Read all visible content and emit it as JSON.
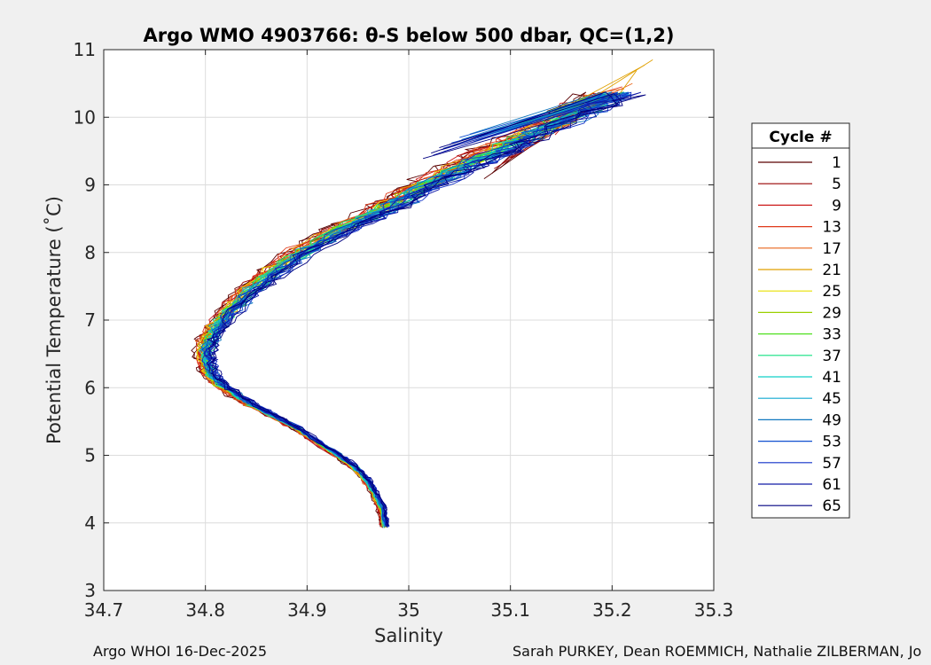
{
  "chart_data": {
    "type": "line",
    "title": "Argo WMO 4903766: θ-S below 500 dbar,  QC=(1,2)",
    "xlabel": "Salinity",
    "ylabel": "Potential Temperature (˚C)",
    "xlim": [
      34.7,
      35.3
    ],
    "ylim": [
      3,
      11
    ],
    "x_ticks": [
      34.7,
      34.8,
      34.9,
      35.0,
      35.1,
      35.2,
      35.3
    ],
    "x_tick_labels": [
      "34.7",
      "34.8",
      "34.9",
      "35",
      "35.1",
      "35.2",
      "35.3"
    ],
    "y_ticks": [
      3,
      4,
      5,
      6,
      7,
      8,
      9,
      10,
      11
    ],
    "y_tick_labels": [
      "3",
      "4",
      "5",
      "6",
      "7",
      "8",
      "9",
      "10",
      "11"
    ],
    "grid": true,
    "legend": {
      "title": "Cycle #",
      "placement": "outside-right",
      "entries": [
        "1",
        "5",
        "9",
        "13",
        "17",
        "21",
        "25",
        "29",
        "33",
        "37",
        "41",
        "45",
        "49",
        "53",
        "57",
        "61",
        "65"
      ],
      "colors": [
        "#5a0000",
        "#990000",
        "#cc1a1a",
        "#e03a1a",
        "#e8651a",
        "#e0a000",
        "#e8e000",
        "#9ad000",
        "#50e020",
        "#10e080",
        "#10d0c8",
        "#10a8d0",
        "#1078c0",
        "#1050d0",
        "#1030c8",
        "#101aa8",
        "#000080"
      ]
    },
    "series_centerline": {
      "salinity": [
        34.977,
        34.975,
        34.973,
        34.968,
        34.962,
        34.955,
        34.945,
        34.93,
        34.91,
        34.89,
        34.865,
        34.845,
        34.83,
        34.815,
        34.805,
        34.802,
        34.8,
        34.803,
        34.812,
        34.825,
        34.845,
        34.87,
        34.9,
        34.935,
        34.97,
        35.0,
        35.03,
        35.065,
        35.1,
        35.135,
        35.17,
        35.2
      ],
      "theta": [
        3.95,
        4.1,
        4.25,
        4.4,
        4.55,
        4.7,
        4.85,
        5.0,
        5.2,
        5.4,
        5.6,
        5.75,
        5.9,
        6.05,
        6.2,
        6.35,
        6.5,
        6.7,
        6.9,
        7.15,
        7.45,
        7.75,
        8.05,
        8.35,
        8.6,
        8.85,
        9.1,
        9.35,
        9.6,
        9.85,
        10.1,
        10.35
      ]
    },
    "cycle_end_salinity": [
      35.09,
      35.1,
      35.16,
      35.21,
      35.22,
      35.24,
      35.18,
      35.14,
      35.12,
      35.11,
      35.1,
      35.08,
      35.06,
      35.05,
      35.05,
      35.04,
      35.03
    ],
    "cycle_end_theta": [
      9.25,
      9.4,
      9.9,
      10.45,
      10.5,
      10.85,
      10.3,
      10.1,
      10.0,
      9.95,
      9.9,
      9.8,
      9.75,
      9.7,
      9.65,
      9.6,
      9.55
    ]
  },
  "footer": {
    "left": "Argo WHOI 16-Dec-2025",
    "right": "Sarah PURKEY, Dean ROEMMICH, Nathalie ZILBERMAN, Jo"
  }
}
